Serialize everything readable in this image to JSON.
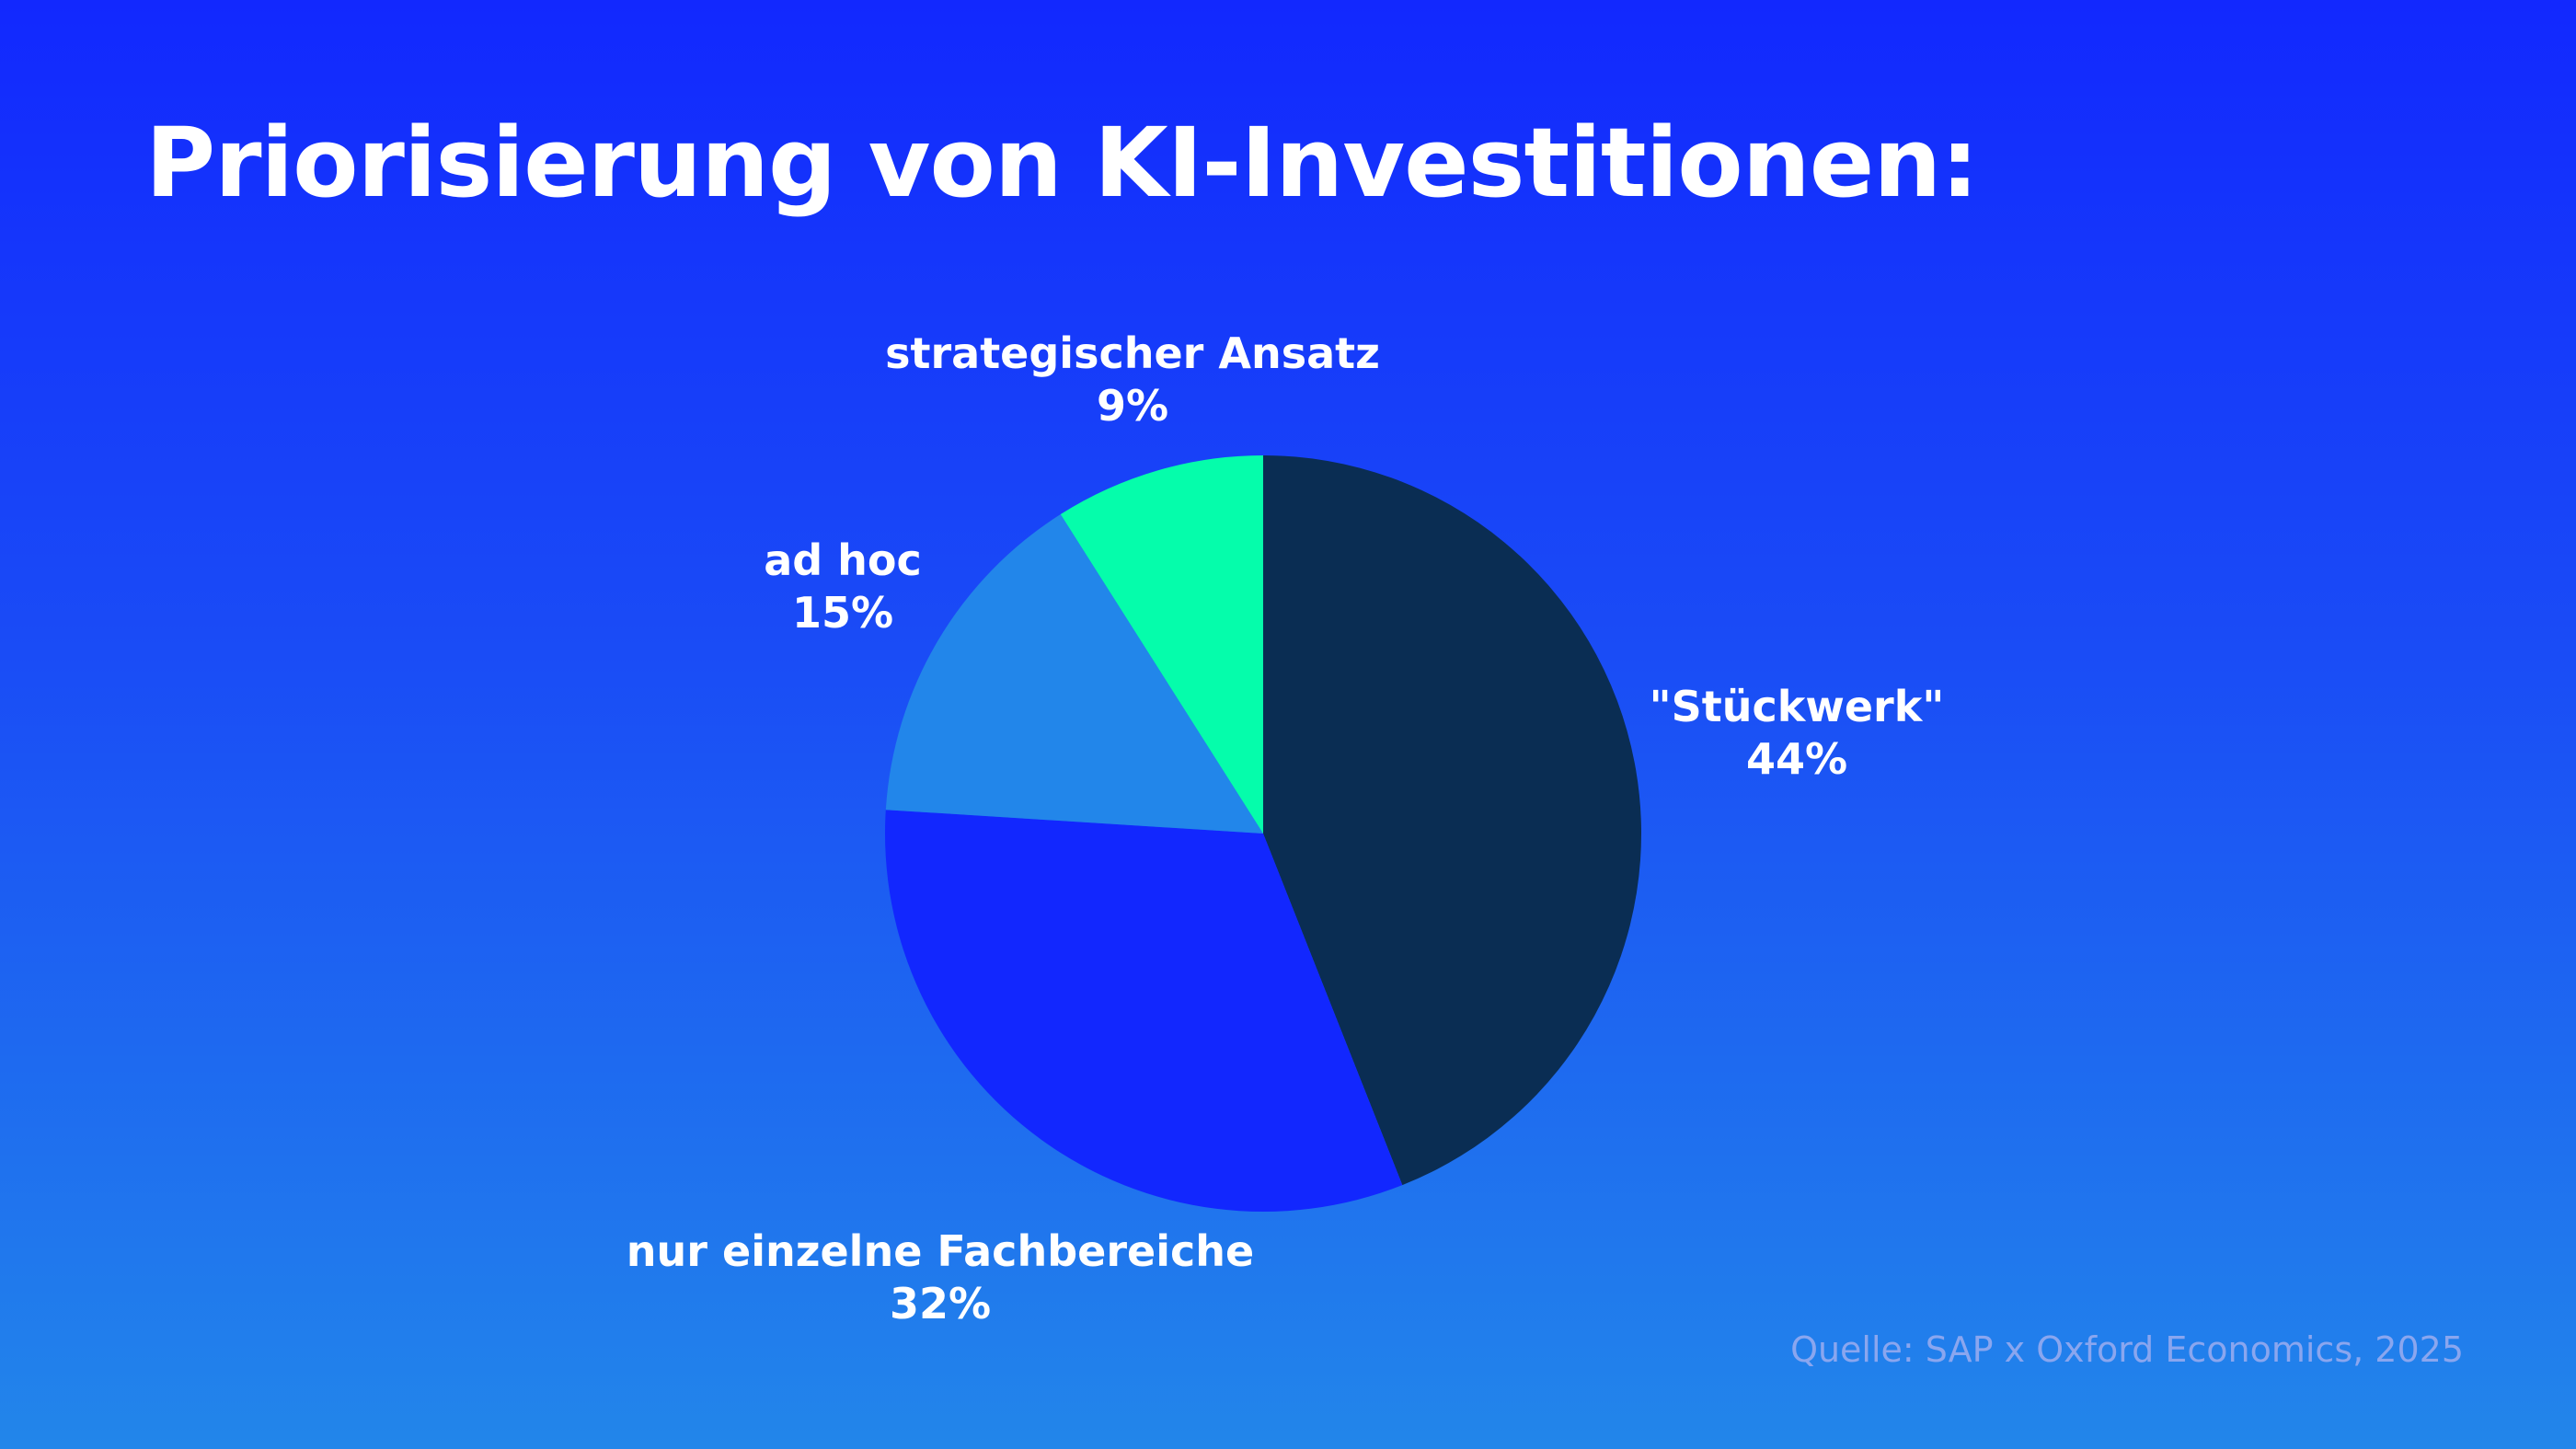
{
  "title": "Priorisierung von KI-Investitionen:",
  "source": "Quelle: SAP x Oxford Economics, 2025",
  "chart_data": {
    "type": "pie",
    "title": "Priorisierung von KI-Investitionen:",
    "slices": [
      {
        "name": "\"Stückwerk\"",
        "value": 44,
        "value_label": "44%",
        "color": "#0a2d53"
      },
      {
        "name": "nur einzelne Fachbereiche",
        "value": 32,
        "value_label": "32%",
        "color": "#1227fe"
      },
      {
        "name": "ad hoc",
        "value": 15,
        "value_label": "15%",
        "color": "#2286ea"
      },
      {
        "name": "strategischer Ansatz",
        "value": 9,
        "value_label": "9%",
        "color": "#05fdab"
      }
    ],
    "start": "top",
    "direction": "clockwise"
  }
}
